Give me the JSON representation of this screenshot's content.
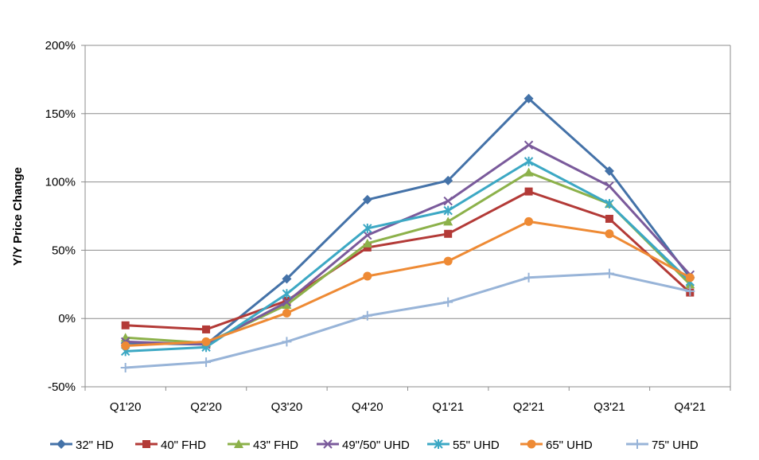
{
  "chart_data": {
    "type": "line",
    "title": "",
    "xlabel": "",
    "ylabel": "Y/Y Price Change",
    "ylim": [
      -50,
      200
    ],
    "y_ticks": [
      -50,
      0,
      50,
      100,
      150,
      200
    ],
    "y_tick_labels": [
      "-50%",
      "0%",
      "50%",
      "100%",
      "150%",
      "200%"
    ],
    "grid": "horizontal",
    "legend_position": "bottom",
    "categories": [
      "Q1'20",
      "Q2'20",
      "Q3'20",
      "Q4'20",
      "Q1'21",
      "Q2'21",
      "Q3'21",
      "Q4'21"
    ],
    "series": [
      {
        "name": "32\" HD",
        "color": "#4472a8",
        "marker": "diamond",
        "values": [
          -18,
          -19,
          29,
          87,
          101,
          161,
          108,
          30
        ]
      },
      {
        "name": "40\" FHD",
        "color": "#b33a37",
        "marker": "square",
        "values": [
          -5,
          -8,
          13,
          52,
          62,
          93,
          73,
          19
        ]
      },
      {
        "name": "43\" FHD",
        "color": "#8cb14a",
        "marker": "triangle",
        "values": [
          -14,
          -18,
          10,
          55,
          71,
          107,
          84,
          25
        ]
      },
      {
        "name": "49\"/50\" UHD",
        "color": "#7a5a9b",
        "marker": "x",
        "values": [
          -17,
          -19,
          12,
          61,
          86,
          127,
          97,
          32
        ]
      },
      {
        "name": "55\" UHD",
        "color": "#3ca8c4",
        "marker": "star",
        "values": [
          -24,
          -21,
          18,
          66,
          79,
          115,
          84,
          27
        ]
      },
      {
        "name": "65\" UHD",
        "color": "#ee8a34",
        "marker": "circle",
        "values": [
          -20,
          -17,
          4,
          31,
          42,
          71,
          62,
          30
        ]
      },
      {
        "name": "75\" UHD",
        "color": "#98b4d8",
        "marker": "plus",
        "values": [
          -36,
          -32,
          -17,
          2,
          12,
          30,
          33,
          20
        ]
      }
    ]
  }
}
